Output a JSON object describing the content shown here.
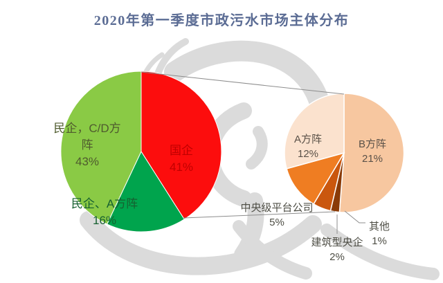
{
  "chart_data": {
    "type": "pie",
    "subtype": "pie-of-pie",
    "title": "2020年第一季度市政污水市场主体分布",
    "legend": "none",
    "primary_pie": {
      "start_angle_deg": 0,
      "clockwise": true,
      "slices": [
        {
          "label": "国企",
          "value": 41,
          "pct": "41%",
          "color": "#FC0D0D",
          "label_color": "#C00000"
        },
        {
          "label": "民企、A方阵",
          "value": 16,
          "pct": "16%",
          "color": "#00A44D",
          "label_color": "#166030"
        },
        {
          "label": "民企，C/D方阵",
          "value": 43,
          "pct": "43%",
          "color": "#8ACA45",
          "label_color": "#4F5B2E"
        }
      ]
    },
    "secondary_pie": {
      "note_total": 41,
      "start_angle_deg": 0,
      "clockwise": true,
      "slices": [
        {
          "label": "B方阵",
          "value": 21,
          "pct": "21%",
          "color": "#F7C7A0",
          "label_color": "#5A5148"
        },
        {
          "label": "其他",
          "value": 1,
          "pct": "1%",
          "color": "#8A3B08",
          "label_color": "#4D4D44"
        },
        {
          "label": "建筑型央企",
          "value": 2,
          "pct": "2%",
          "color": "#CA570E",
          "label_color": "#4D4D44"
        },
        {
          "label": "中央级平台公司",
          "value": 5,
          "pct": "5%",
          "color": "#EF7D22",
          "label_color": "#4D4D44"
        },
        {
          "label": "A方阵",
          "value": 12,
          "pct": "12%",
          "color": "#FBE2CE",
          "label_color": "#5A5148"
        }
      ]
    },
    "connector_line_color": "#8C8C8C",
    "watermark_color": "#DBDBDB"
  }
}
